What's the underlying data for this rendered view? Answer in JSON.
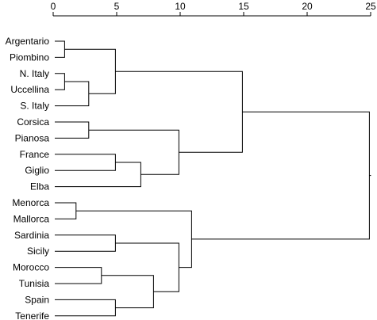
{
  "chart_data": {
    "type": "dendrogram",
    "title": "",
    "xlabel": "",
    "ylabel": "",
    "xlim": [
      0,
      25
    ],
    "ticks": [
      0,
      5,
      10,
      15,
      20,
      25
    ],
    "leaves": [
      "Argentario",
      "Piombino",
      "N. Italy",
      "Uccellina",
      "S. Italy",
      "Corsica",
      "Pianosa",
      "France",
      "Giglio",
      "Elba",
      "Menorca",
      "Mallorca",
      "Sardinia",
      "Sicily",
      "Morocco",
      "Tunisia",
      "Spain",
      "Tenerife"
    ],
    "merges": [
      {
        "a": "L0",
        "b": "L1",
        "height": 0.9
      },
      {
        "a": "L2",
        "b": "L3",
        "height": 0.9
      },
      {
        "a": "M1",
        "b": "L4",
        "height": 2.8
      },
      {
        "a": "M0",
        "b": "M2",
        "height": 4.9
      },
      {
        "a": "L5",
        "b": "L6",
        "height": 2.8
      },
      {
        "a": "L7",
        "b": "L8",
        "height": 4.9
      },
      {
        "a": "M5",
        "b": "L9",
        "height": 6.9
      },
      {
        "a": "M4",
        "b": "M6",
        "height": 9.9
      },
      {
        "a": "M3",
        "b": "M7",
        "height": 14.9
      },
      {
        "a": "L10",
        "b": "L11",
        "height": 1.8
      },
      {
        "a": "L12",
        "b": "L13",
        "height": 4.9
      },
      {
        "a": "L14",
        "b": "L15",
        "height": 3.8
      },
      {
        "a": "L16",
        "b": "L17",
        "height": 4.9
      },
      {
        "a": "M11",
        "b": "M12",
        "height": 7.9
      },
      {
        "a": "M10",
        "b": "M13",
        "height": 9.9
      },
      {
        "a": "M9",
        "b": "M14",
        "height": 10.9
      },
      {
        "a": "M8",
        "b": "M15",
        "height": 24.9
      }
    ]
  }
}
